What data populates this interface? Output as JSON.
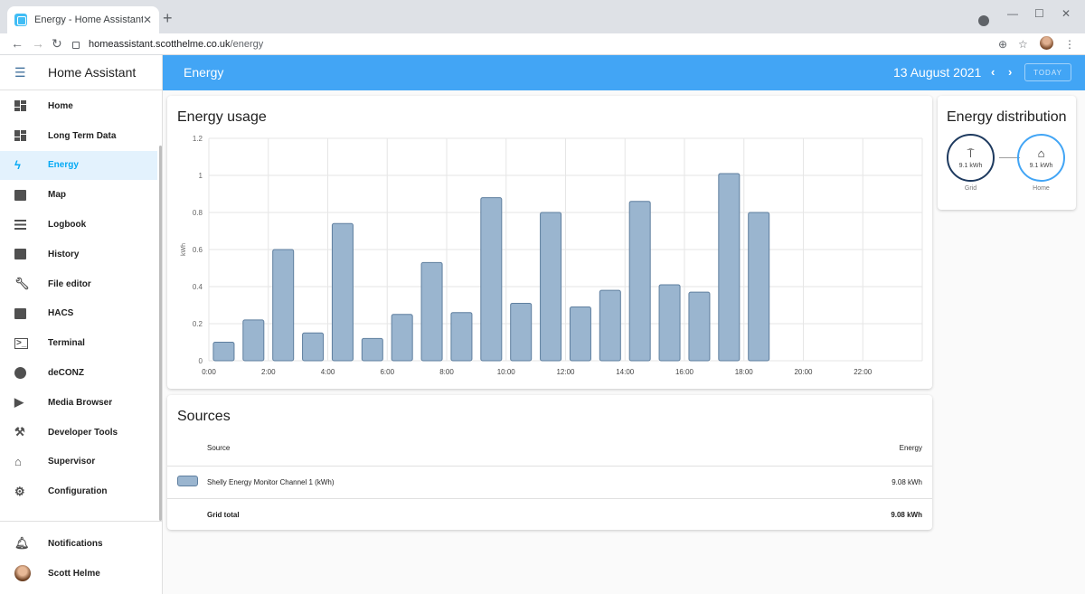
{
  "browser": {
    "tab_title": "Energy - Home Assistant",
    "url_host": "homeassistant.scotthelme.co.uk",
    "url_path": "/energy"
  },
  "sidebar": {
    "app_name": "Home Assistant",
    "items": [
      {
        "label": "Home",
        "icon": "dashboard-icon"
      },
      {
        "label": "Long Term Data",
        "icon": "dashboard-icon"
      },
      {
        "label": "Energy",
        "icon": "lightning-bolt-icon",
        "active": true
      },
      {
        "label": "Map",
        "icon": "map-pin-icon"
      },
      {
        "label": "Logbook",
        "icon": "list-icon"
      },
      {
        "label": "History",
        "icon": "chart-bar-icon"
      },
      {
        "label": "File editor",
        "icon": "wrench-icon"
      },
      {
        "label": "HACS",
        "icon": "hacs-icon"
      },
      {
        "label": "Terminal",
        "icon": "console-icon"
      },
      {
        "label": "deCONZ",
        "icon": "compass-icon"
      },
      {
        "label": "Media Browser",
        "icon": "play-box-icon"
      },
      {
        "label": "Developer Tools",
        "icon": "hammer-icon"
      },
      {
        "label": "Supervisor",
        "icon": "home-assistant-icon"
      },
      {
        "label": "Configuration",
        "icon": "cog-icon"
      }
    ],
    "notifications_label": "Notifications",
    "user_name": "Scott Helme"
  },
  "header": {
    "title": "Energy",
    "date": "13 August 2021",
    "today_label": "TODAY"
  },
  "usage_card": {
    "title": "Energy usage"
  },
  "chart_data": {
    "type": "bar",
    "title": "Energy usage",
    "xlabel": "",
    "ylabel": "kWh",
    "ylim": [
      0,
      1.2
    ],
    "yticks": [
      0,
      0.2,
      0.4,
      0.6,
      0.8,
      1,
      1.2
    ],
    "ytick_labels": [
      "0",
      "0.2",
      "0.4",
      "0.6",
      "0.8",
      "1",
      "1.2"
    ],
    "xtick_labels": [
      "0:00",
      "2:00",
      "4:00",
      "6:00",
      "8:00",
      "10:00",
      "12:00",
      "14:00",
      "16:00",
      "18:00",
      "20:00",
      "22:00"
    ],
    "categories": [
      "0:00",
      "1:00",
      "2:00",
      "3:00",
      "4:00",
      "5:00",
      "6:00",
      "7:00",
      "8:00",
      "9:00",
      "10:00",
      "11:00",
      "12:00",
      "13:00",
      "14:00",
      "15:00",
      "16:00",
      "17:00",
      "18:00"
    ],
    "values": [
      0.1,
      0.22,
      0.6,
      0.15,
      0.74,
      0.12,
      0.25,
      0.53,
      0.26,
      0.88,
      0.31,
      0.8,
      0.29,
      0.38,
      0.86,
      0.41,
      0.37,
      1.01,
      0.8
    ],
    "grid": true,
    "bar_color": "#9ab5cf",
    "bar_border": "#5f7f9f"
  },
  "sources_card": {
    "title": "Sources",
    "col_source": "Source",
    "col_energy": "Energy",
    "rows": [
      {
        "name": "Shelly Energy Monitor Channel 1 (kWh)",
        "energy": "9.08 kWh"
      }
    ],
    "total_label": "Grid total",
    "total_value": "9.08 kWh"
  },
  "distribution_card": {
    "title": "Energy distribution",
    "grid_value": "9.1 kWh",
    "grid_label": "Grid",
    "home_value": "9.1 kWh",
    "home_label": "Home"
  }
}
